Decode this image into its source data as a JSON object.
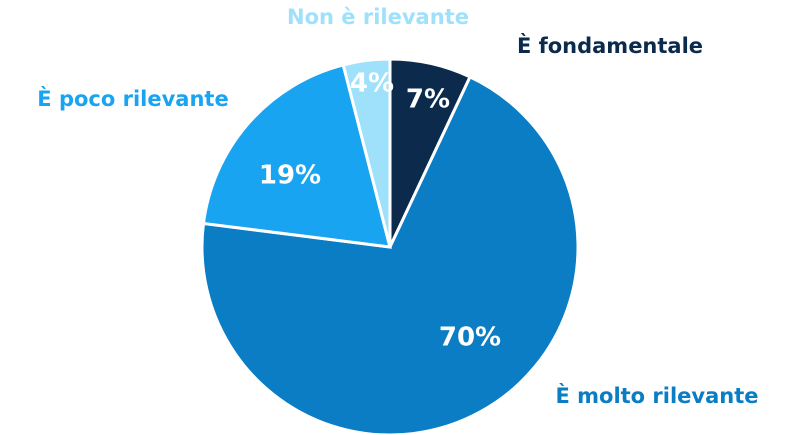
{
  "chart_data": {
    "type": "pie",
    "categories": [
      "È fondamentale",
      "È molto rilevante",
      "È poco rilevante",
      "Non è rilevante"
    ],
    "values": [
      7,
      70,
      19,
      4
    ],
    "value_labels": [
      "7%",
      "70%",
      "19%",
      "4%"
    ],
    "colors": [
      "#0b2a4c",
      "#0a7dc5",
      "#19a4f2",
      "#9fe1fa"
    ]
  }
}
